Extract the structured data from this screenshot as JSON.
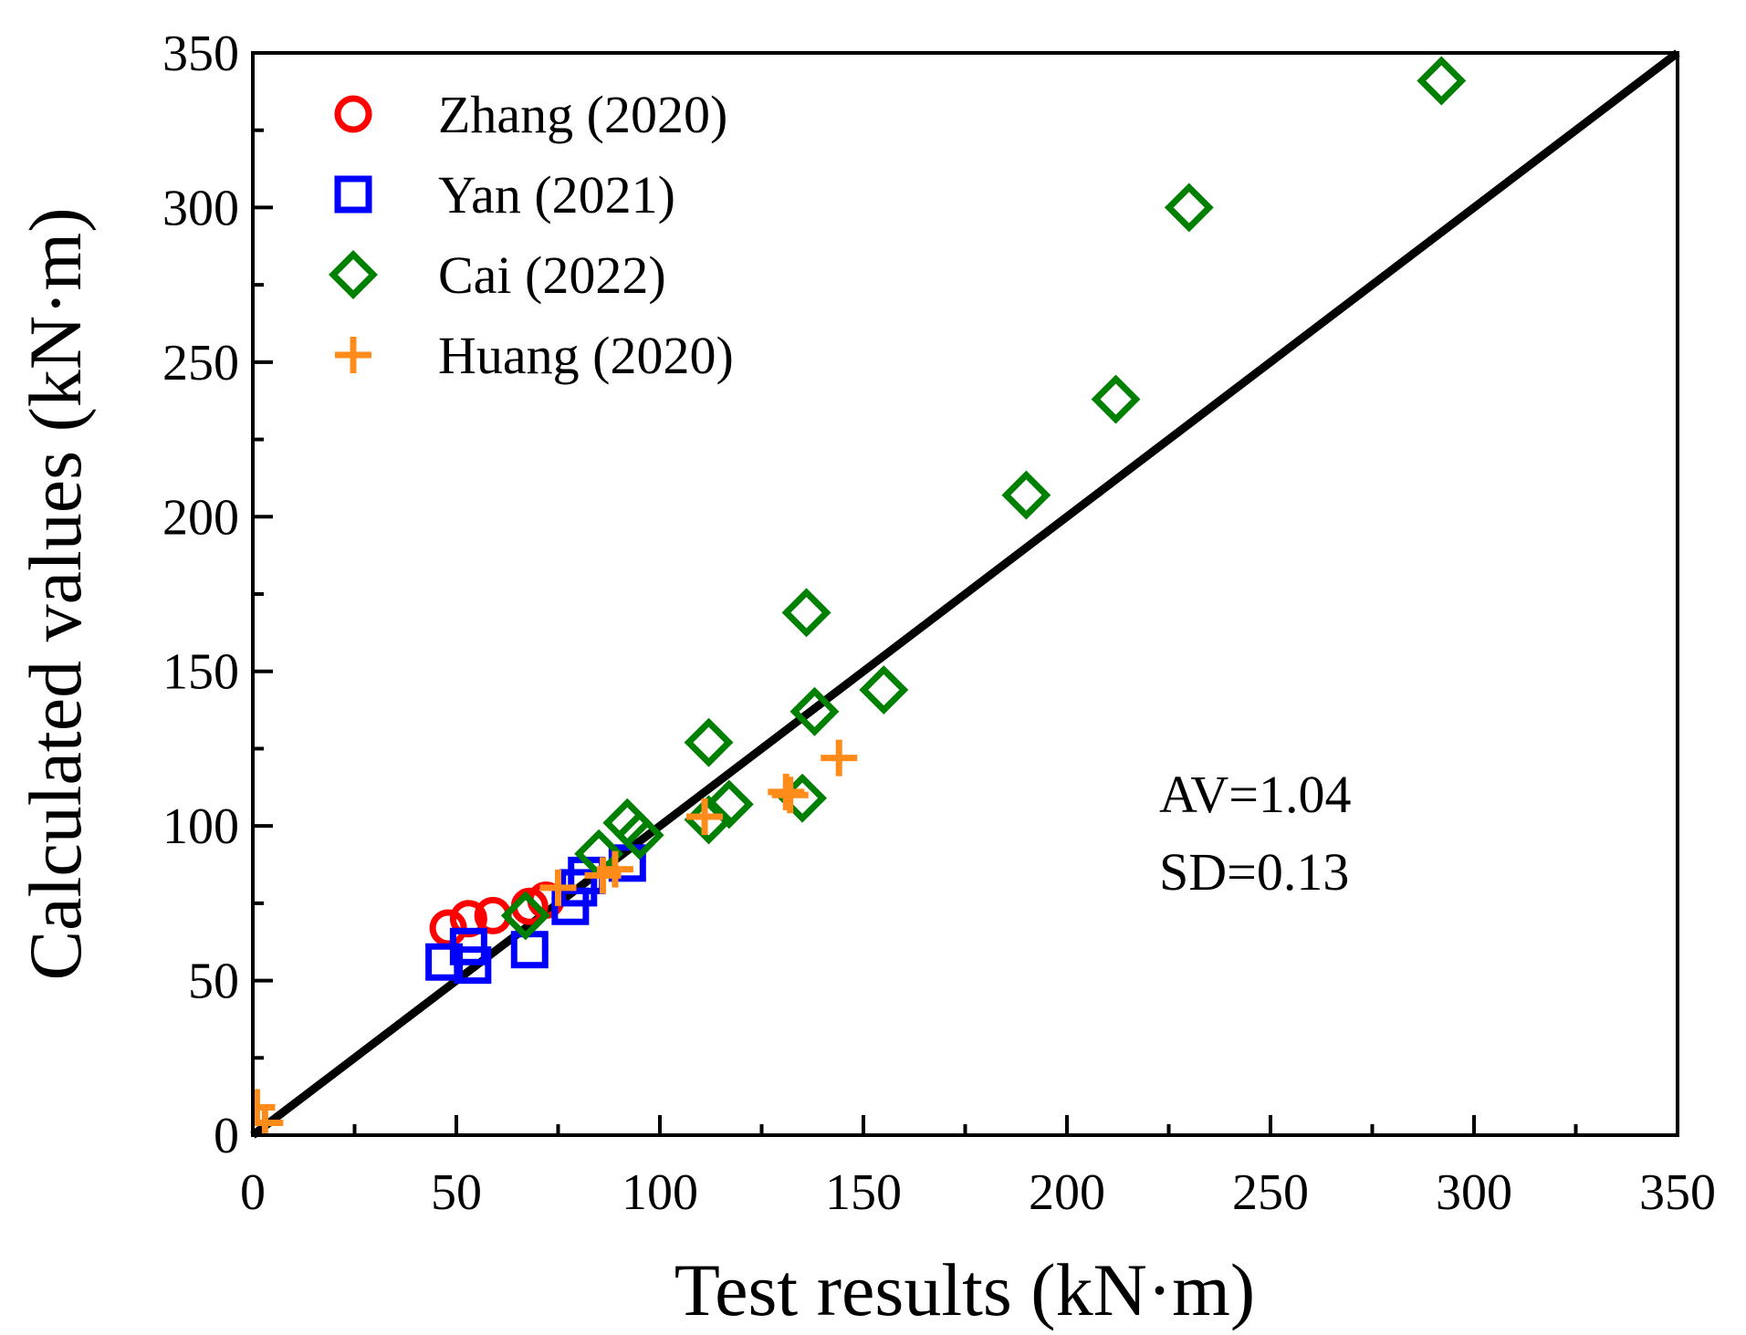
{
  "chart_data": {
    "type": "scatter",
    "title": "",
    "xlabel": "Test results (kN·m)",
    "ylabel": "Calculated values (kN·m)",
    "xlim": [
      0,
      350
    ],
    "ylim": [
      0,
      350
    ],
    "xticks": [
      0,
      50,
      100,
      150,
      200,
      250,
      300,
      350
    ],
    "yticks": [
      0,
      50,
      100,
      150,
      200,
      250,
      300,
      350
    ],
    "xtick_labels": [
      "0",
      "50",
      "100",
      "150",
      "200",
      "250",
      "300",
      "350"
    ],
    "ytick_labels": [
      "0",
      "50",
      "100",
      "150",
      "200",
      "250",
      "300",
      "350"
    ],
    "grid": false,
    "legend_position": "top-left",
    "reference_line": {
      "name": "y = x",
      "from": [
        0,
        0
      ],
      "to": [
        350,
        350
      ],
      "color": "#000000"
    },
    "annotations": [
      "AV=1.04",
      "SD=0.13"
    ],
    "series": [
      {
        "name": "Zhang (2020)",
        "marker": "circle",
        "color": "#ff0000",
        "points": [
          [
            48,
            67
          ],
          [
            53,
            70
          ],
          [
            59,
            71
          ],
          [
            68,
            74
          ],
          [
            72,
            76
          ]
        ]
      },
      {
        "name": "Yan (2021)",
        "marker": "square",
        "color": "#0000ff",
        "points": [
          [
            47,
            56
          ],
          [
            53,
            61
          ],
          [
            54,
            55
          ],
          [
            68,
            60
          ],
          [
            78,
            74
          ],
          [
            80,
            80
          ],
          [
            82,
            84
          ],
          [
            92,
            88
          ]
        ]
      },
      {
        "name": "Cai (2022)",
        "marker": "diamond",
        "color": "#008000",
        "points": [
          [
            67,
            71
          ],
          [
            85,
            91
          ],
          [
            92,
            101
          ],
          [
            95,
            97
          ],
          [
            112,
            102
          ],
          [
            112,
            127
          ],
          [
            117,
            107
          ],
          [
            135,
            109
          ],
          [
            136,
            169
          ],
          [
            138,
            137
          ],
          [
            155,
            144
          ],
          [
            190,
            207
          ],
          [
            212,
            238
          ],
          [
            230,
            300
          ],
          [
            292,
            341
          ]
        ]
      },
      {
        "name": "Huang (2020)",
        "marker": "plus",
        "color": "#ff8c1a",
        "points": [
          [
            1,
            9
          ],
          [
            3,
            4
          ],
          [
            75,
            80
          ],
          [
            86,
            84
          ],
          [
            89,
            86
          ],
          [
            111,
            103
          ],
          [
            131,
            111
          ],
          [
            132,
            110
          ],
          [
            144,
            122
          ]
        ]
      }
    ]
  }
}
